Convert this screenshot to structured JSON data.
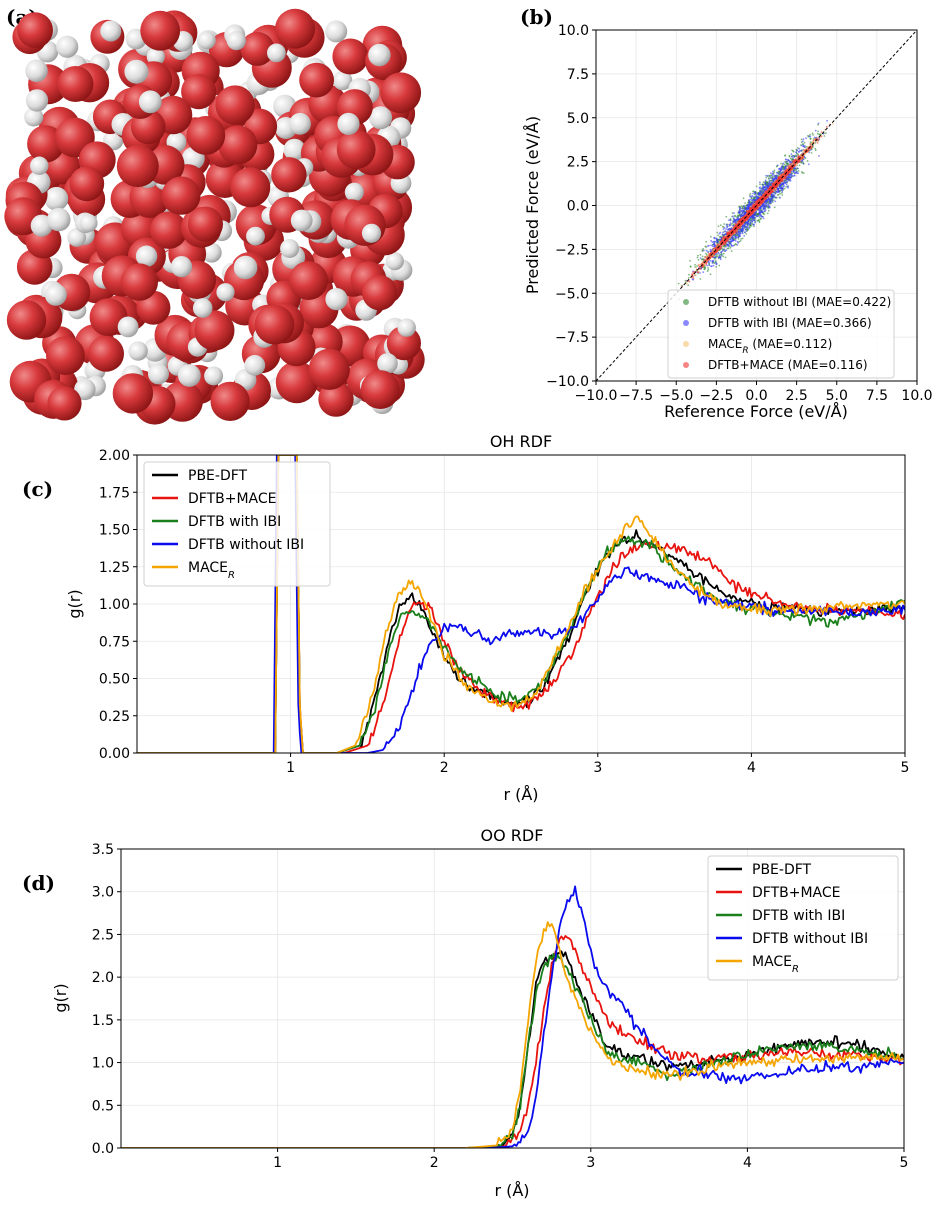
{
  "labels": {
    "a": "(a)",
    "b": "(b)",
    "c": "(c)",
    "d": "(d)"
  },
  "colors": {
    "oxygen": "#d8393c",
    "hydrogen": "#e6e6e6"
  },
  "chart_data": [
    {
      "id": "b",
      "type": "scatter",
      "title": "",
      "xlabel": "Reference Force (eV/Å)",
      "ylabel": "Predicted Force (eV/Å)",
      "xlim": [
        -10,
        10
      ],
      "ylim": [
        -10,
        10
      ],
      "xticks": [
        "−10.0",
        "−7.5",
        "−5.0",
        "−2.5",
        "0.0",
        "2.5",
        "5.0",
        "7.5",
        "10.0"
      ],
      "yticks": [
        "−10.0",
        "−7.5",
        "−5.0",
        "−2.5",
        "0.0",
        "2.5",
        "5.0",
        "7.5",
        "10.0"
      ],
      "grid": true,
      "legend_position": "lower-right",
      "series": [
        {
          "name": "DFTB without IBI (MAE=0.422)",
          "color": "#2e8b2e",
          "spread": 0.6,
          "range": 9
        },
        {
          "name": "DFTB with IBI (MAE=0.366)",
          "color": "#3b3bff",
          "spread": 0.55,
          "range": 8
        },
        {
          "name": "MACE_R  (MAE=0.112)",
          "color": "#f5c06a",
          "spread": 0.15,
          "range": 9
        },
        {
          "name": "DFTB+MACE (MAE=0.116)",
          "color": "#ee3333",
          "spread": 0.15,
          "range": 9
        }
      ]
    },
    {
      "id": "c",
      "type": "line",
      "title": "OH RDF",
      "xlabel": "r (Å)",
      "ylabel": "g(r)",
      "xlim": [
        0,
        5
      ],
      "ylim": [
        0,
        2
      ],
      "xticks": [
        "1",
        "2",
        "3",
        "4",
        "5"
      ],
      "yticks": [
        "0.00",
        "0.25",
        "0.50",
        "0.75",
        "1.00",
        "1.25",
        "1.50",
        "1.75",
        "2.00"
      ],
      "grid": true,
      "legend_position": "top-left",
      "series": [
        {
          "name": "PBE-DFT",
          "color": "#000000",
          "x": [
            0,
            0.85,
            0.9,
            0.92,
            0.94,
            0.96,
            1.02,
            1.04,
            1.06,
            1.08,
            1.3,
            1.45,
            1.55,
            1.65,
            1.72,
            1.78,
            1.85,
            1.95,
            2.05,
            2.2,
            2.35,
            2.5,
            2.65,
            2.8,
            2.95,
            3.05,
            3.15,
            3.25,
            3.35,
            3.5,
            3.65,
            3.8,
            3.95,
            4.1,
            4.3,
            4.5,
            4.7,
            4.9,
            5.0
          ],
          "y": [
            0,
            0,
            0,
            2.0,
            2.0,
            2.0,
            2.0,
            2.0,
            0.3,
            0,
            0,
            0.05,
            0.35,
            0.8,
            1.0,
            1.05,
            0.98,
            0.75,
            0.55,
            0.42,
            0.36,
            0.33,
            0.45,
            0.75,
            1.15,
            1.32,
            1.42,
            1.46,
            1.4,
            1.3,
            1.2,
            1.08,
            1.02,
            0.98,
            0.97,
            0.95,
            0.97,
            0.96,
            0.97
          ]
        },
        {
          "name": "DFTB+MACE",
          "color": "#e8130e",
          "x": [
            0,
            0.88,
            0.9,
            0.92,
            0.94,
            0.96,
            1.02,
            1.04,
            1.06,
            1.08,
            1.35,
            1.5,
            1.6,
            1.7,
            1.78,
            1.85,
            1.92,
            2.0,
            2.1,
            2.25,
            2.4,
            2.55,
            2.7,
            2.85,
            3.0,
            3.1,
            3.2,
            3.3,
            3.45,
            3.6,
            3.75,
            3.9,
            4.05,
            4.2,
            4.4,
            4.6,
            4.8,
            5.0
          ],
          "y": [
            0,
            0,
            0,
            2.0,
            2.0,
            2.0,
            2.0,
            2.0,
            0.3,
            0,
            0,
            0.05,
            0.3,
            0.75,
            0.98,
            1.02,
            0.95,
            0.75,
            0.55,
            0.4,
            0.33,
            0.32,
            0.45,
            0.7,
            1.05,
            1.25,
            1.35,
            1.4,
            1.38,
            1.35,
            1.25,
            1.12,
            1.05,
            1.0,
            0.97,
            0.95,
            0.94,
            0.93
          ]
        },
        {
          "name": "DFTB with IBI",
          "color": "#1a7f1a",
          "x": [
            0,
            0.85,
            0.9,
            0.92,
            0.94,
            0.96,
            1.02,
            1.04,
            1.06,
            1.08,
            1.3,
            1.45,
            1.55,
            1.65,
            1.72,
            1.8,
            1.88,
            1.95,
            2.05,
            2.2,
            2.35,
            2.5,
            2.65,
            2.8,
            2.95,
            3.05,
            3.15,
            3.25,
            3.35,
            3.5,
            3.65,
            3.8,
            3.95,
            4.1,
            4.3,
            4.5,
            4.7,
            4.9,
            5.0
          ],
          "y": [
            0,
            0,
            0,
            2.0,
            2.0,
            2.0,
            2.0,
            2.0,
            0.3,
            0,
            0,
            0.05,
            0.3,
            0.75,
            0.92,
            0.95,
            0.9,
            0.8,
            0.62,
            0.48,
            0.38,
            0.36,
            0.48,
            0.78,
            1.15,
            1.35,
            1.42,
            1.43,
            1.38,
            1.25,
            1.12,
            1.02,
            0.98,
            0.95,
            0.92,
            0.88,
            0.92,
            0.98,
            1.02
          ]
        },
        {
          "name": "DFTB without IBI",
          "color": "#0a0aee",
          "x": [
            0,
            0.85,
            0.89,
            0.91,
            0.93,
            0.95,
            1.01,
            1.03,
            1.05,
            1.07,
            1.5,
            1.6,
            1.7,
            1.8,
            1.9,
            2.0,
            2.1,
            2.2,
            2.3,
            2.4,
            2.5,
            2.6,
            2.7,
            2.8,
            2.9,
            3.0,
            3.1,
            3.2,
            3.3,
            3.45,
            3.6,
            3.75,
            3.9,
            4.05,
            4.2,
            4.4,
            4.6,
            4.8,
            5.0
          ],
          "y": [
            0,
            0,
            0,
            2.0,
            2.0,
            2.0,
            2.0,
            2.0,
            0.3,
            0,
            0,
            0.02,
            0.15,
            0.45,
            0.72,
            0.85,
            0.82,
            0.8,
            0.75,
            0.8,
            0.8,
            0.82,
            0.8,
            0.82,
            0.9,
            1.05,
            1.18,
            1.22,
            1.2,
            1.15,
            1.08,
            1.02,
            1.0,
            0.98,
            0.95,
            0.95,
            0.95,
            0.95,
            0.96
          ]
        },
        {
          "name": "MACE_R",
          "color": "#f5a500",
          "x": [
            0,
            0.86,
            0.9,
            0.92,
            0.94,
            0.96,
            1.02,
            1.04,
            1.06,
            1.08,
            1.3,
            1.42,
            1.52,
            1.62,
            1.7,
            1.78,
            1.84,
            1.9,
            2.0,
            2.15,
            2.3,
            2.45,
            2.6,
            2.75,
            2.9,
            3.0,
            3.1,
            3.18,
            3.25,
            3.35,
            3.5,
            3.65,
            3.8,
            3.95,
            4.1,
            4.3,
            4.5,
            4.7,
            4.9,
            5.0
          ],
          "y": [
            0,
            0,
            0,
            2.0,
            2.0,
            2.0,
            2.0,
            2.0,
            0.3,
            0,
            0,
            0.05,
            0.35,
            0.8,
            1.05,
            1.15,
            1.1,
            0.95,
            0.65,
            0.45,
            0.35,
            0.32,
            0.4,
            0.7,
            1.05,
            1.25,
            1.4,
            1.52,
            1.58,
            1.45,
            1.25,
            1.1,
            1.0,
            0.98,
            0.95,
            0.96,
            0.97,
            0.99,
            1.0,
            1.0
          ]
        }
      ],
      "legend": [
        {
          "label": "PBE-DFT",
          "color": "#000000"
        },
        {
          "label": "DFTB+MACE",
          "color": "#e8130e"
        },
        {
          "label": "DFTB with IBI",
          "color": "#1a7f1a"
        },
        {
          "label": "DFTB without IBI",
          "color": "#0a0aee"
        },
        {
          "label": "MACE",
          "sub": "R",
          "color": "#f5a500"
        }
      ]
    },
    {
      "id": "d",
      "type": "line",
      "title": "OO RDF",
      "xlabel": "r (Å)",
      "ylabel": "g(r)",
      "xlim": [
        0,
        5
      ],
      "ylim": [
        0,
        3.5
      ],
      "xticks": [
        "1",
        "2",
        "3",
        "4",
        "5"
      ],
      "yticks": [
        "0.0",
        "0.5",
        "1.0",
        "1.5",
        "2.0",
        "2.5",
        "3.0",
        "3.5"
      ],
      "grid": true,
      "legend_position": "top-right",
      "series": [
        {
          "name": "PBE-DFT",
          "color": "#000000",
          "x": [
            0,
            2.2,
            2.4,
            2.5,
            2.55,
            2.6,
            2.65,
            2.7,
            2.75,
            2.8,
            2.85,
            2.9,
            3.0,
            3.1,
            3.2,
            3.3,
            3.4,
            3.5,
            3.7,
            3.9,
            4.1,
            4.3,
            4.5,
            4.7,
            4.9,
            5.0
          ],
          "y": [
            0,
            0,
            0.02,
            0.15,
            0.5,
            1.2,
            1.9,
            2.2,
            2.25,
            2.3,
            2.2,
            2.0,
            1.55,
            1.2,
            1.1,
            1.05,
            1.0,
            0.95,
            1.0,
            1.05,
            1.15,
            1.2,
            1.25,
            1.2,
            1.1,
            1.05
          ]
        },
        {
          "name": "DFTB+MACE",
          "color": "#e8130e",
          "x": [
            0,
            2.3,
            2.45,
            2.55,
            2.6,
            2.65,
            2.7,
            2.75,
            2.8,
            2.85,
            2.9,
            2.95,
            3.0,
            3.1,
            3.2,
            3.3,
            3.4,
            3.5,
            3.7,
            3.9,
            4.1,
            4.3,
            4.5,
            4.7,
            4.9,
            5.0
          ],
          "y": [
            0,
            0,
            0.02,
            0.2,
            0.5,
            1.0,
            1.6,
            2.1,
            2.4,
            2.5,
            2.3,
            2.1,
            1.9,
            1.5,
            1.35,
            1.25,
            1.2,
            1.1,
            1.05,
            1.05,
            1.1,
            1.12,
            1.1,
            1.1,
            1.05,
            1.0
          ]
        },
        {
          "name": "DFTB with IBI",
          "color": "#1a7f1a",
          "x": [
            0,
            2.2,
            2.4,
            2.5,
            2.55,
            2.6,
            2.65,
            2.7,
            2.75,
            2.8,
            2.85,
            2.9,
            3.0,
            3.1,
            3.2,
            3.3,
            3.4,
            3.5,
            3.7,
            3.9,
            4.1,
            4.3,
            4.5,
            4.7,
            4.9,
            5.0
          ],
          "y": [
            0,
            0,
            0.02,
            0.15,
            0.5,
            1.2,
            1.8,
            2.15,
            2.25,
            2.2,
            2.1,
            1.9,
            1.5,
            1.15,
            1.05,
            1.0,
            0.95,
            0.85,
            0.95,
            1.05,
            1.15,
            1.2,
            1.2,
            1.15,
            1.1,
            1.05
          ]
        },
        {
          "name": "DFTB without IBI",
          "color": "#0a0aee",
          "x": [
            0,
            2.35,
            2.5,
            2.6,
            2.65,
            2.7,
            2.75,
            2.8,
            2.85,
            2.9,
            2.95,
            3.0,
            3.05,
            3.1,
            3.2,
            3.3,
            3.4,
            3.5,
            3.6,
            3.7,
            3.9,
            4.1,
            4.3,
            4.5,
            4.7,
            4.9,
            5.0
          ],
          "y": [
            0,
            0,
            0.02,
            0.2,
            0.6,
            1.3,
            2.0,
            2.6,
            2.9,
            3.0,
            2.7,
            2.3,
            2.0,
            1.85,
            1.7,
            1.4,
            1.2,
            1.0,
            0.85,
            0.9,
            0.8,
            0.85,
            0.9,
            0.95,
            0.95,
            1.0,
            1.0
          ]
        },
        {
          "name": "MACE_R",
          "color": "#f5a500",
          "x": [
            0,
            2.2,
            2.4,
            2.5,
            2.55,
            2.6,
            2.65,
            2.7,
            2.75,
            2.8,
            2.85,
            2.9,
            3.0,
            3.1,
            3.2,
            3.3,
            3.4,
            3.5,
            3.7,
            3.9,
            4.1,
            4.3,
            4.5,
            4.7,
            4.9,
            5.0
          ],
          "y": [
            0,
            0,
            0.03,
            0.2,
            0.7,
            1.5,
            2.2,
            2.55,
            2.65,
            2.3,
            2.0,
            1.75,
            1.35,
            1.1,
            0.95,
            0.9,
            0.88,
            0.85,
            0.9,
            1.0,
            1.0,
            1.05,
            1.05,
            1.05,
            1.05,
            1.05
          ]
        }
      ],
      "legend": [
        {
          "label": "PBE-DFT",
          "color": "#000000"
        },
        {
          "label": "DFTB+MACE",
          "color": "#e8130e"
        },
        {
          "label": "DFTB with IBI",
          "color": "#1a7f1a"
        },
        {
          "label": "DFTB without IBI",
          "color": "#0a0aee"
        },
        {
          "label": "MACE",
          "sub": "R",
          "color": "#f5a500"
        }
      ]
    }
  ]
}
